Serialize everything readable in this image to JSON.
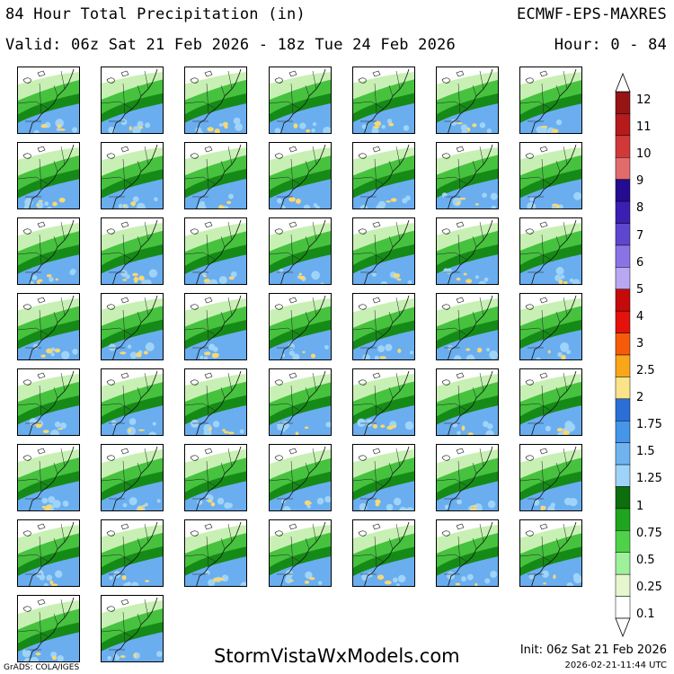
{
  "header": {
    "title": "84 Hour Total Precipitation (in)",
    "valid": "Valid: 06z Sat 21 Feb 2026 - 18z Tue 24 Feb 2026",
    "model": "ECMWF-EPS-MAXRES",
    "hours": "Hour: 0 - 84"
  },
  "panels": {
    "count": 51,
    "columns": 7,
    "map_region": "US East Coast / Northeast",
    "fields": [
      {
        "wet": 0.55,
        "blobs": 3
      },
      {
        "wet": 0.62,
        "blobs": 2
      },
      {
        "wet": 0.58,
        "blobs": 4
      },
      {
        "wet": 0.6,
        "blobs": 2
      },
      {
        "wet": 0.64,
        "blobs": 3
      },
      {
        "wet": 0.57,
        "blobs": 3
      },
      {
        "wet": 0.55,
        "blobs": 2
      },
      {
        "wet": 0.56,
        "blobs": 4
      },
      {
        "wet": 0.54,
        "blobs": 3
      },
      {
        "wet": 0.6,
        "blobs": 2
      },
      {
        "wet": 0.55,
        "blobs": 3
      },
      {
        "wet": 0.58,
        "blobs": 2
      },
      {
        "wet": 0.63,
        "blobs": 3
      },
      {
        "wet": 0.59,
        "blobs": 2
      },
      {
        "wet": 0.54,
        "blobs": 4
      },
      {
        "wet": 0.58,
        "blobs": 5
      },
      {
        "wet": 0.52,
        "blobs": 3
      },
      {
        "wet": 0.56,
        "blobs": 3
      },
      {
        "wet": 0.6,
        "blobs": 2
      },
      {
        "wet": 0.57,
        "blobs": 3
      },
      {
        "wet": 0.61,
        "blobs": 2
      },
      {
        "wet": 0.59,
        "blobs": 3
      },
      {
        "wet": 0.63,
        "blobs": 3
      },
      {
        "wet": 0.57,
        "blobs": 3
      },
      {
        "wet": 0.6,
        "blobs": 2
      },
      {
        "wet": 0.48,
        "blobs": 2
      },
      {
        "wet": 0.58,
        "blobs": 2
      },
      {
        "wet": 0.62,
        "blobs": 2
      },
      {
        "wet": 0.58,
        "blobs": 3
      },
      {
        "wet": 0.55,
        "blobs": 2
      },
      {
        "wet": 0.6,
        "blobs": 4
      },
      {
        "wet": 0.52,
        "blobs": 2
      },
      {
        "wet": 0.62,
        "blobs": 4
      },
      {
        "wet": 0.56,
        "blobs": 2
      },
      {
        "wet": 0.58,
        "blobs": 2
      },
      {
        "wet": 0.55,
        "blobs": 3
      },
      {
        "wet": 0.5,
        "blobs": 2
      },
      {
        "wet": 0.52,
        "blobs": 2
      },
      {
        "wet": 0.45,
        "blobs": 2
      },
      {
        "wet": 0.54,
        "blobs": 2
      },
      {
        "wet": 0.48,
        "blobs": 2
      },
      {
        "wet": 0.52,
        "blobs": 2
      },
      {
        "wet": 0.52,
        "blobs": 2
      },
      {
        "wet": 0.58,
        "blobs": 2
      },
      {
        "wet": 0.54,
        "blobs": 2
      },
      {
        "wet": 0.6,
        "blobs": 3
      },
      {
        "wet": 0.5,
        "blobs": 2
      },
      {
        "wet": 0.55,
        "blobs": 2
      },
      {
        "wet": 0.52,
        "blobs": 2
      },
      {
        "wet": 0.5,
        "blobs": 2
      },
      {
        "wet": 0.55,
        "blobs": 2
      }
    ]
  },
  "legend": {
    "levels": [
      "0.1",
      "0.25",
      "0.5",
      "0.75",
      "1",
      "1.25",
      "1.5",
      "1.75",
      "2",
      "2.5",
      "3",
      "4",
      "5",
      "6",
      "7",
      "8",
      "9",
      "10",
      "11",
      "12"
    ],
    "colors": [
      "#ffffff",
      "#e6f7d0",
      "#9ef09a",
      "#4fd14a",
      "#1ea41d",
      "#0c6e0c",
      "#9fd4f8",
      "#6fb4ef",
      "#4596e8",
      "#2b6fd6",
      "#fbe38a",
      "#f9a61a",
      "#f55b0a",
      "#e4120b",
      "#c40a0a",
      "#b9a7f2",
      "#8a74e5",
      "#5e46cf",
      "#3a1fb2",
      "#230c8f",
      "#e26b6b",
      "#d23838",
      "#b51b1b",
      "#961414"
    ]
  },
  "footer": {
    "website": "StormVistaWxModels.com",
    "init": "Init: 06z Sat 21 Feb 2026",
    "timestamp": "2026-02-21-11:44 UTC",
    "grads": "GrADS: COLA/IGES"
  }
}
